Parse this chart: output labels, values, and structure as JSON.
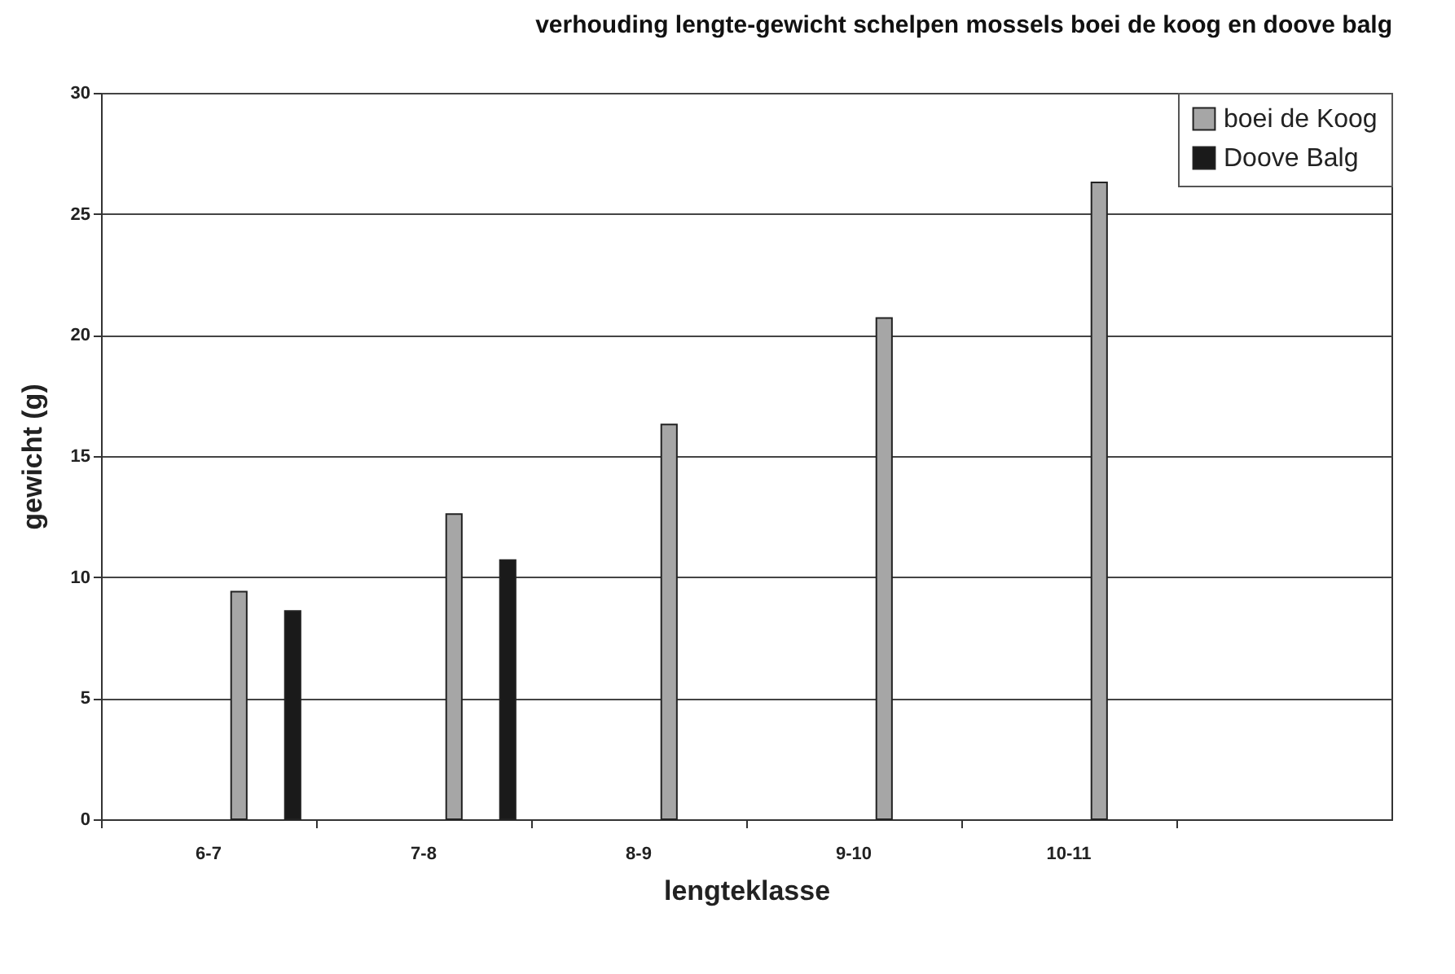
{
  "chart_data": {
    "type": "bar",
    "title": "verhouding lengte-gewicht schelpen mossels boei de koog en doove balg",
    "xlabel": "lengteklasse",
    "ylabel": "gewicht (g)",
    "categories": [
      "6-7",
      "7-8",
      "8-9",
      "9-10",
      "10-11",
      null
    ],
    "series": [
      {
        "name": "boei de Koog",
        "color": "#a6a6a6",
        "values": [
          9.4,
          12.6,
          16.3,
          20.7,
          26.3,
          null
        ]
      },
      {
        "name": "Doove Balg",
        "color": "#1a1a1a",
        "values": [
          8.6,
          10.7,
          null,
          null,
          null,
          null
        ]
      }
    ],
    "ylim": [
      0,
      30
    ],
    "yticks": [
      0,
      5,
      10,
      15,
      20,
      25,
      30
    ],
    "grid": "y",
    "legend": "top right"
  }
}
